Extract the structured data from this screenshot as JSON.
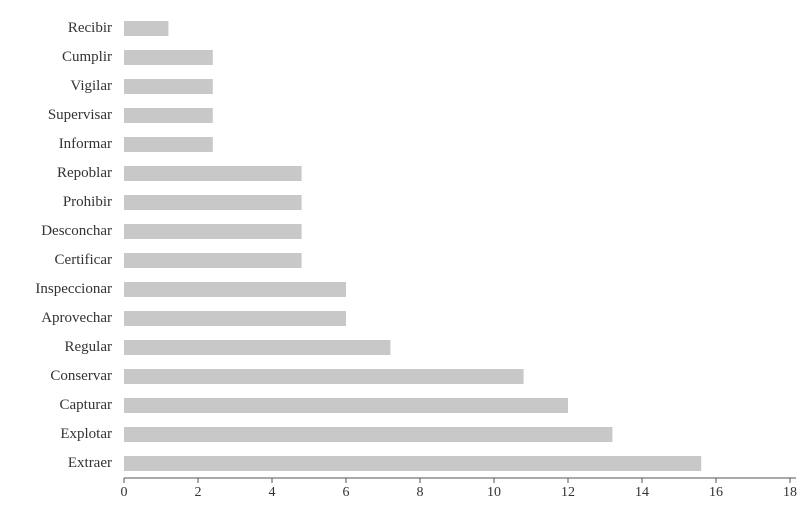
{
  "chart_data": {
    "type": "hbar",
    "categories": [
      "Recibir",
      "Cumplir",
      "Vigilar",
      "Supervisar",
      "Informar",
      "Repoblar",
      "Prohibir",
      "Desconchar",
      "Certificar",
      "Inspeccionar",
      "Aprovechar",
      "Regular",
      "Conservar",
      "Capturar",
      "Explotar",
      "Extraer"
    ],
    "values": [
      1.2,
      2.4,
      2.4,
      2.4,
      2.4,
      4.8,
      4.8,
      4.8,
      4.8,
      6.0,
      6.0,
      7.2,
      10.8,
      12.0,
      13.2,
      15.6
    ],
    "color": "#c8c8c8",
    "xlim": [
      0,
      18
    ],
    "xticks": [
      0,
      2,
      4,
      6,
      8,
      10,
      12,
      14,
      16,
      18
    ]
  }
}
